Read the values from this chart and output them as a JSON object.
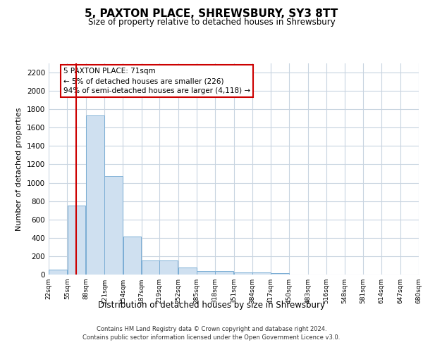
{
  "title1": "5, PAXTON PLACE, SHREWSBURY, SY3 8TT",
  "title2": "Size of property relative to detached houses in Shrewsbury",
  "xlabel": "Distribution of detached houses by size in Shrewsbury",
  "ylabel": "Number of detached properties",
  "footer1": "Contains HM Land Registry data © Crown copyright and database right 2024.",
  "footer2": "Contains public sector information licensed under the Open Government Licence v3.0.",
  "annotation_title": "5 PAXTON PLACE: 71sqm",
  "annotation_line1": "← 5% of detached houses are smaller (226)",
  "annotation_line2": "94% of semi-detached houses are larger (4,118) →",
  "property_size": 71,
  "bar_edges": [
    22,
    55,
    88,
    121,
    154,
    187,
    219,
    252,
    285,
    318,
    351,
    384,
    417,
    450,
    483,
    516,
    548,
    581,
    614,
    647,
    680
  ],
  "bar_heights": [
    50,
    750,
    1730,
    1070,
    415,
    155,
    155,
    75,
    40,
    35,
    25,
    25,
    15,
    0,
    0,
    0,
    0,
    0,
    0,
    0
  ],
  "bar_color": "#cfe0f0",
  "bar_edge_color": "#7aadd4",
  "vline_color": "#cc0000",
  "vline_x": 71,
  "annotation_box_color": "#ffffff",
  "annotation_box_edge": "#cc0000",
  "grid_color": "#c8d4e0",
  "bg_color": "#ffffff",
  "ylim": [
    0,
    2300
  ],
  "yticks": [
    0,
    200,
    400,
    600,
    800,
    1000,
    1200,
    1400,
    1600,
    1800,
    2000,
    2200
  ],
  "tick_labels": [
    "22sqm",
    "55sqm",
    "88sqm",
    "121sqm",
    "154sqm",
    "187sqm",
    "219sqm",
    "252sqm",
    "285sqm",
    "318sqm",
    "351sqm",
    "384sqm",
    "417sqm",
    "450sqm",
    "483sqm",
    "516sqm",
    "548sqm",
    "581sqm",
    "614sqm",
    "647sqm",
    "680sqm"
  ]
}
